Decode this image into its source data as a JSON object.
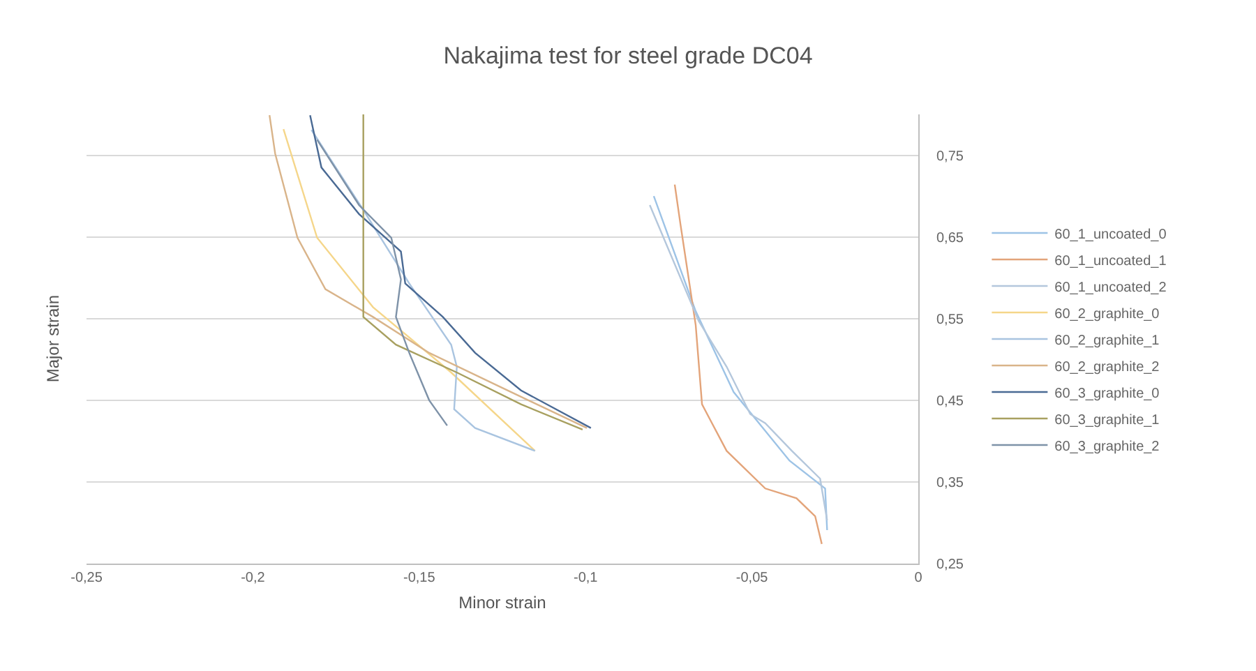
{
  "chart_data": {
    "type": "line",
    "title": "Nakajima test for steel grade DC04",
    "xlabel": "Minor strain",
    "ylabel": "Major strain",
    "xlim": [
      -0.25,
      0
    ],
    "xticks": [
      {
        "value": -0.25,
        "label": "-0,25"
      },
      {
        "value": -0.2,
        "label": "-0,2"
      },
      {
        "value": -0.15,
        "label": "-0,15"
      },
      {
        "value": -0.1,
        "label": "-0,1"
      },
      {
        "value": -0.05,
        "label": "-0,05"
      },
      {
        "value": 0,
        "label": "0"
      }
    ],
    "ylim": [
      0.25,
      0.8
    ],
    "yticks": [
      {
        "value": 0.25,
        "label": "0,25"
      },
      {
        "value": 0.35,
        "label": "0,35"
      },
      {
        "value": 0.45,
        "label": "0,45"
      },
      {
        "value": 0.55,
        "label": "0,55"
      },
      {
        "value": 0.65,
        "label": "0,65"
      },
      {
        "value": 0.75,
        "label": "0,75"
      }
    ],
    "grid": "y",
    "legend": "right",
    "marker": "none",
    "line_style": "solid",
    "series": [
      {
        "name": "60_1_uncoated_0",
        "color": "#9dc3e6",
        "x": [
          -0.0795,
          -0.067,
          -0.0555,
          -0.0387,
          -0.028,
          -0.0274
        ],
        "values": [
          0.7,
          0.56,
          0.46,
          0.376,
          0.342,
          0.291
        ]
      },
      {
        "name": "60_1_uncoated_1",
        "color": "#e3a47a",
        "x": [
          -0.0732,
          -0.0715,
          -0.0669,
          -0.065,
          -0.0576,
          -0.046,
          -0.0366,
          -0.031,
          -0.029
        ],
        "values": [
          0.714,
          0.666,
          0.542,
          0.445,
          0.388,
          0.342,
          0.33,
          0.308,
          0.274
        ]
      },
      {
        "name": "60_1_uncoated_2",
        "color": "#b4c7dc",
        "x": [
          -0.0807,
          -0.066,
          -0.0576,
          -0.0505,
          -0.046,
          -0.038,
          -0.0295,
          -0.0274
        ],
        "values": [
          0.689,
          0.547,
          0.491,
          0.433,
          0.422,
          0.388,
          0.354,
          0.303
        ]
      },
      {
        "name": "60_2_graphite_0",
        "color": "#f5d68a",
        "x": [
          -0.1908,
          -0.1807,
          -0.1639,
          -0.1404,
          -0.1152
        ],
        "values": [
          0.782,
          0.649,
          0.564,
          0.484,
          0.388
        ]
      },
      {
        "name": "60_2_graphite_1",
        "color": "#a9c4e0",
        "x": [
          -0.1824,
          -0.1668,
          -0.153,
          -0.1404,
          -0.1387,
          -0.1395,
          -0.1332,
          -0.1152
        ],
        "values": [
          0.781,
          0.683,
          0.593,
          0.518,
          0.491,
          0.439,
          0.416,
          0.388
        ]
      },
      {
        "name": "60_2_graphite_2",
        "color": "#d9b48a",
        "x": [
          -0.195,
          -0.1933,
          -0.1866,
          -0.1782,
          -0.1639,
          -0.147,
          -0.126,
          -0.0996
        ],
        "values": [
          0.799,
          0.752,
          0.649,
          0.586,
          0.552,
          0.508,
          0.467,
          0.416
        ]
      },
      {
        "name": "60_3_graphite_0",
        "color": "#4a6a94",
        "x": [
          -0.1828,
          -0.1794,
          -0.1681,
          -0.1555,
          -0.1542,
          -0.1429,
          -0.1332,
          -0.1194,
          -0.0984
        ],
        "values": [
          0.799,
          0.735,
          0.678,
          0.632,
          0.593,
          0.552,
          0.508,
          0.462,
          0.416
        ]
      },
      {
        "name": "60_3_graphite_1",
        "color": "#a8a060",
        "x": [
          -0.1668,
          -0.1668,
          -0.157,
          -0.1387,
          -0.1194,
          -0.1009
        ],
        "values": [
          0.8,
          0.552,
          0.518,
          0.484,
          0.445,
          0.414
        ]
      },
      {
        "name": "60_3_graphite_2",
        "color": "#7e92a8",
        "x": [
          -0.1807,
          -0.1681,
          -0.1584,
          -0.1555,
          -0.157,
          -0.153,
          -0.147,
          -0.1416
        ],
        "values": [
          0.769,
          0.689,
          0.649,
          0.598,
          0.552,
          0.508,
          0.45,
          0.419
        ]
      }
    ]
  }
}
